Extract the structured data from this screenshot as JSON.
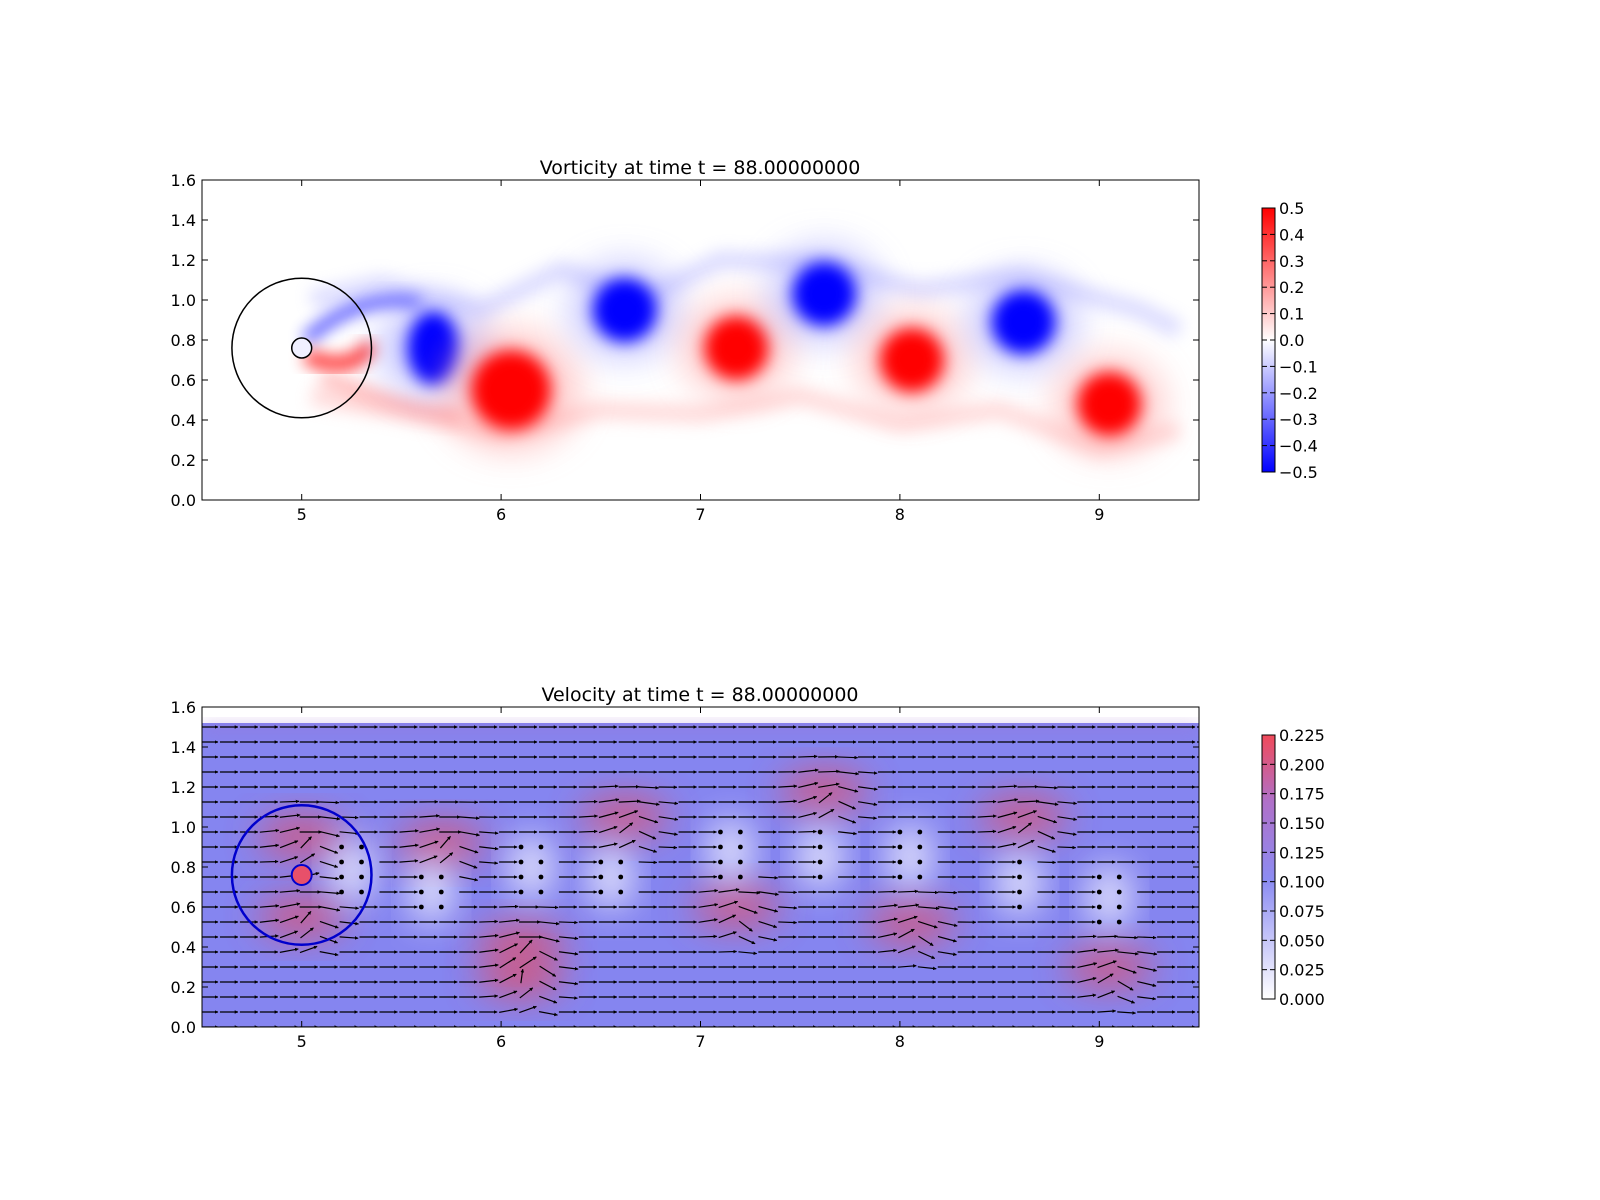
{
  "chart_data": [
    {
      "type": "heatmap",
      "title": "Vorticity at time t =    88.00000000",
      "xlim": [
        4.5,
        9.5
      ],
      "ylim": [
        0.0,
        1.6
      ],
      "x_ticks": [
        "5",
        "6",
        "7",
        "8",
        "9"
      ],
      "y_ticks": [
        "0.0",
        "0.2",
        "0.4",
        "0.6",
        "0.8",
        "1.0",
        "1.2",
        "1.4",
        "1.6"
      ],
      "colorbar": {
        "range": [
          -0.5,
          0.5
        ],
        "ticks": [
          "0.5",
          "0.4",
          "0.3",
          "0.2",
          "0.1",
          "0.0",
          "−0.1",
          "−0.2",
          "−0.3",
          "−0.4",
          "−0.5"
        ],
        "low_color": "#0000ff",
        "mid_color": "#ffffff",
        "high_color": "#ff0000"
      },
      "cylinder": {
        "x": 5.0,
        "y": 0.76,
        "r": 0.05
      },
      "domain_circle": {
        "x": 5.0,
        "y": 0.76,
        "r": 0.35,
        "color": "#000000"
      },
      "vortices": [
        {
          "x": 5.66,
          "y": 0.76,
          "sign": -1
        },
        {
          "x": 6.05,
          "y": 0.55,
          "sign": 1
        },
        {
          "x": 6.62,
          "y": 0.95,
          "sign": -1
        },
        {
          "x": 7.18,
          "y": 0.76,
          "sign": 1
        },
        {
          "x": 7.62,
          "y": 1.03,
          "sign": -1
        },
        {
          "x": 8.06,
          "y": 0.7,
          "sign": 1
        },
        {
          "x": 8.62,
          "y": 0.89,
          "sign": -1
        },
        {
          "x": 9.05,
          "y": 0.48,
          "sign": 1
        }
      ]
    },
    {
      "type": "heatmap",
      "title": "Velocity at time t =    88.00000000",
      "xlim": [
        4.5,
        9.5
      ],
      "ylim": [
        0.0,
        1.6
      ],
      "x_ticks": [
        "5",
        "6",
        "7",
        "8",
        "9"
      ],
      "y_ticks": [
        "0.0",
        "0.2",
        "0.4",
        "0.6",
        "0.8",
        "1.0",
        "1.2",
        "1.4",
        "1.6"
      ],
      "colorbar": {
        "range": [
          0.0,
          0.225
        ],
        "ticks": [
          "0.225",
          "0.200",
          "0.175",
          "0.150",
          "0.125",
          "0.100",
          "0.075",
          "0.050",
          "0.025",
          "0.000"
        ],
        "low_color": "#ffffff",
        "mid_color": "#8080f0",
        "high_color": "#f05060"
      },
      "field_top": 1.52,
      "cylinder": {
        "x": 5.0,
        "y": 0.76,
        "r": 0.05
      },
      "domain_circle": {
        "x": 5.0,
        "y": 0.76,
        "r": 0.35,
        "color": "#0000cc"
      },
      "arrow_color": "#000000"
    }
  ]
}
